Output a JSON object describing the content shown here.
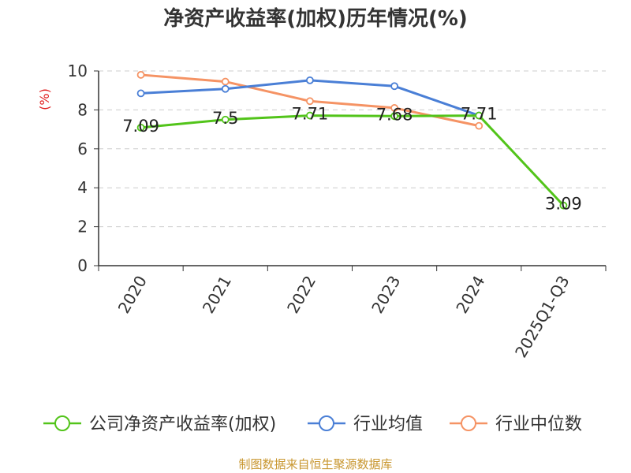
{
  "chart_data": {
    "type": "line",
    "title": "净资产收益率(加权)历年情况(%)",
    "ylabel": "(%)",
    "xlabel": "",
    "categories": [
      "2020",
      "2021",
      "2022",
      "2023",
      "2024",
      "2025Q1-Q3"
    ],
    "ylim": [
      0,
      10
    ],
    "yticks": [
      0,
      2,
      4,
      6,
      8,
      10
    ],
    "grid": true,
    "legend_position": "bottom",
    "series": [
      {
        "name": "公司净资产收益率(加权)",
        "color": "#52c41a",
        "values": [
          7.09,
          7.5,
          7.71,
          7.68,
          7.71,
          3.09
        ],
        "labels": [
          "7.09",
          "7.5",
          "7.71",
          "7.68",
          "7.71",
          "3.09"
        ]
      },
      {
        "name": "行业均值",
        "color": "#4a7fd6",
        "values": [
          8.85,
          9.08,
          9.52,
          9.22,
          7.71,
          null
        ]
      },
      {
        "name": "行业中位数",
        "color": "#f59364",
        "values": [
          9.8,
          9.45,
          8.45,
          8.1,
          7.18,
          null
        ]
      }
    ]
  },
  "source": "制图数据来自恒生聚源数据库"
}
